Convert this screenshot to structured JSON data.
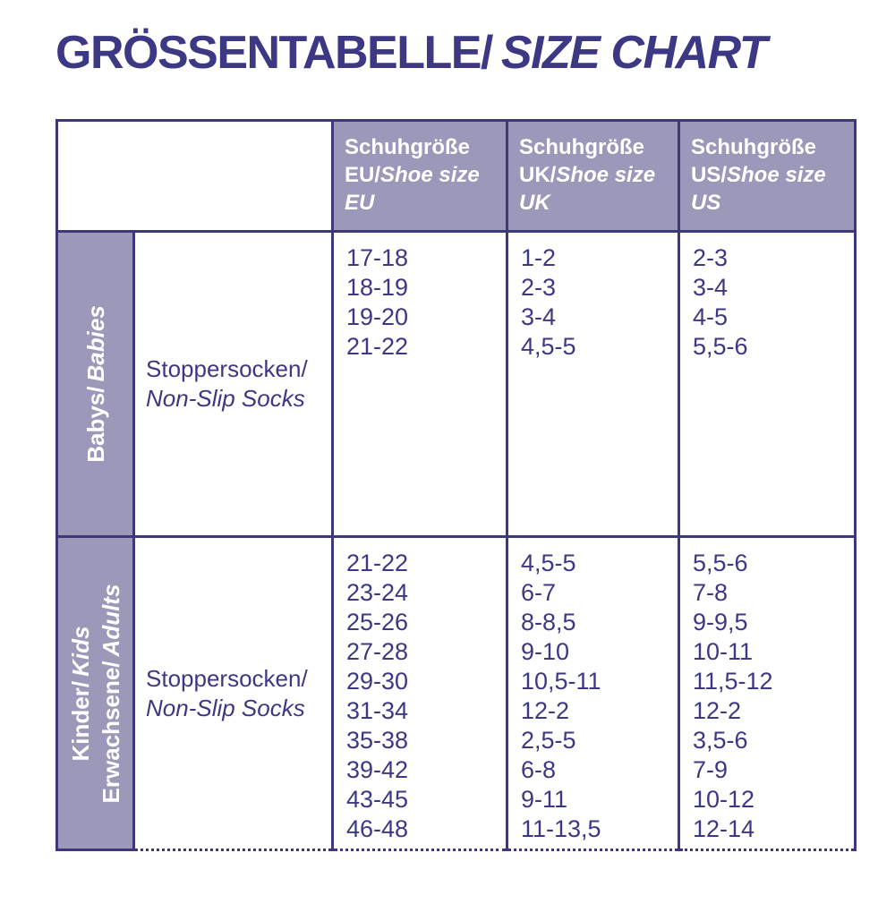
{
  "title": {
    "de": "GRÖSSENTABELLE/",
    "en": "SIZE CHART"
  },
  "colors": {
    "accent_dark_purple": "#3d3884",
    "border_purple": "#3d3877",
    "header_background": "#9c98ba",
    "header_text": "#ffffff"
  },
  "table": {
    "headers": [
      {
        "de": "Schuhgröße EU/",
        "en": "Shoe size EU"
      },
      {
        "de": "Schuhgröße UK/",
        "en": "Shoe size UK"
      },
      {
        "de": "Schuhgröße US/",
        "en": "Shoe size US"
      }
    ],
    "groups": [
      {
        "category": [
          {
            "de": "Babys/",
            "en": "Babies"
          }
        ],
        "product": {
          "de": "Stoppersocken/",
          "en": "Non-Slip Socks"
        },
        "eu": [
          "17-18",
          "18-19",
          "19-20",
          "21-22"
        ],
        "uk": [
          "1-2",
          "2-3",
          "3-4",
          "4,5-5"
        ],
        "us": [
          "2-3",
          "3-4",
          "4-5",
          "5,5-6"
        ]
      },
      {
        "category": [
          {
            "de": "Kinder/",
            "en": "Kids"
          },
          {
            "de": "Erwachsene/",
            "en": "Adults"
          }
        ],
        "product": {
          "de": "Stoppersocken/",
          "en": "Non-Slip Socks"
        },
        "eu": [
          "21-22",
          "23-24",
          "25-26",
          "27-28",
          "29-30",
          "31-34",
          "35-38",
          "39-42",
          "43-45",
          "46-48"
        ],
        "uk": [
          "4,5-5",
          "6-7",
          "8-8,5",
          "9-10",
          "10,5-11",
          "12-2",
          "2,5-5",
          "6-8",
          "9-11",
          "11-13,5"
        ],
        "us": [
          "5,5-6",
          "7-8",
          "9-9,5",
          "10-11",
          "11,5-12",
          "12-2",
          "3,5-6",
          "7-9",
          "10-12",
          "12-14"
        ]
      }
    ]
  }
}
